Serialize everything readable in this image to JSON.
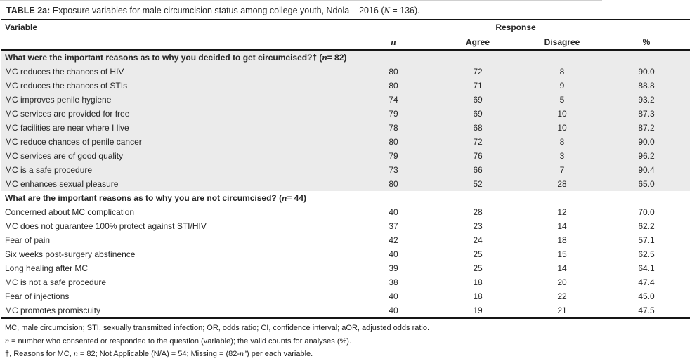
{
  "table": {
    "title_segments": [
      {
        "text": "TABLE 2a:",
        "bold": true
      },
      {
        "text": " Exposure variables for male circumcision status among college youth, Ndola – 2016 ("
      },
      {
        "text": "N",
        "italic": true,
        "serif": true
      },
      {
        "text": " = 136)."
      }
    ],
    "header": {
      "variable_label": "Variable",
      "response_label": "Response",
      "subcolumns": [
        {
          "label": "n",
          "italic": true,
          "serif": true,
          "key": "n"
        },
        {
          "label": "Agree",
          "key": "agree"
        },
        {
          "label": "Disagree",
          "key": "disagree"
        },
        {
          "label": "%",
          "key": "pct"
        }
      ]
    },
    "sections": [
      {
        "shaded": true,
        "header_segments": [
          {
            "text": "What were the important reasons as to why you decided to get circumcised?† (",
            "bold": true
          },
          {
            "text": "n",
            "bold": true,
            "italic": true,
            "serif": true
          },
          {
            "text": " = 82)",
            "bold": true
          }
        ],
        "rows": [
          {
            "label": "MC reduces the chances of HIV",
            "n": "80",
            "agree": "72",
            "disagree": "8",
            "pct": "90.0"
          },
          {
            "label": "MC reduces the chances of STIs",
            "n": "80",
            "agree": "71",
            "disagree": "9",
            "pct": "88.8"
          },
          {
            "label": "MC improves penile hygiene",
            "n": "74",
            "agree": "69",
            "disagree": "5",
            "pct": "93.2"
          },
          {
            "label": "MC services are provided for free",
            "n": "79",
            "agree": "69",
            "disagree": "10",
            "pct": "87.3"
          },
          {
            "label": "MC facilities are near where I live",
            "n": "78",
            "agree": "68",
            "disagree": "10",
            "pct": "87.2"
          },
          {
            "label": "MC reduce chances of penile cancer",
            "n": "80",
            "agree": "72",
            "disagree": "8",
            "pct": "90.0"
          },
          {
            "label": "MC services are of good quality",
            "n": "79",
            "agree": "76",
            "disagree": "3",
            "pct": "96.2"
          },
          {
            "label": "MC is a safe procedure",
            "n": "73",
            "agree": "66",
            "disagree": "7",
            "pct": "90.4"
          },
          {
            "label": "MC enhances sexual pleasure",
            "n": "80",
            "agree": "52",
            "disagree": "28",
            "pct": "65.0"
          }
        ]
      },
      {
        "shaded": false,
        "header_segments": [
          {
            "text": "What are the important reasons as to why you are not circumcised? (",
            "bold": true
          },
          {
            "text": "n",
            "bold": true,
            "italic": true,
            "serif": true
          },
          {
            "text": " = 44)",
            "bold": true
          }
        ],
        "rows": [
          {
            "label": "Concerned about MC complication",
            "n": "40",
            "agree": "28",
            "disagree": "12",
            "pct": "70.0"
          },
          {
            "label": "MC does not guarantee 100% protect against STI/HIV",
            "n": "37",
            "agree": "23",
            "disagree": "14",
            "pct": "62.2"
          },
          {
            "label": "Fear of pain",
            "n": "42",
            "agree": "24",
            "disagree": "18",
            "pct": "57.1"
          },
          {
            "label": "Six weeks post-surgery abstinence",
            "n": "40",
            "agree": "25",
            "disagree": "15",
            "pct": "62.5"
          },
          {
            "label": "Long healing after MC",
            "n": "39",
            "agree": "25",
            "disagree": "14",
            "pct": "64.1"
          },
          {
            "label": "MC is not a safe procedure",
            "n": "38",
            "agree": "18",
            "disagree": "20",
            "pct": "47.4"
          },
          {
            "label": "Fear of injections",
            "n": "40",
            "agree": "18",
            "disagree": "22",
            "pct": "45.0"
          },
          {
            "label": "MC promotes promiscuity",
            "n": "40",
            "agree": "19",
            "disagree": "21",
            "pct": "47.5"
          }
        ]
      }
    ],
    "footnotes": [
      [
        {
          "text": "MC, male circumcision; STI, sexually transmitted infection; OR, odds ratio; CI, confidence interval; aOR, adjusted odds ratio."
        }
      ],
      [
        {
          "text": "n",
          "italic": true,
          "serif": true
        },
        {
          "text": " = number who consented or responded to the question (variable); the valid counts for analyses (%)."
        }
      ],
      [
        {
          "text": "†, Reasons for MC, "
        },
        {
          "text": "n",
          "italic": true,
          "serif": true
        },
        {
          "text": " = 82; Not Applicable (N/A) = 54; Missing = (82-"
        },
        {
          "text": "n’",
          "italic": true,
          "serif": true
        },
        {
          "text": ") per each variable."
        }
      ]
    ],
    "colors": {
      "shaded_row_bg": "#ebebeb",
      "rule": "#151515",
      "text": "#262626"
    }
  }
}
